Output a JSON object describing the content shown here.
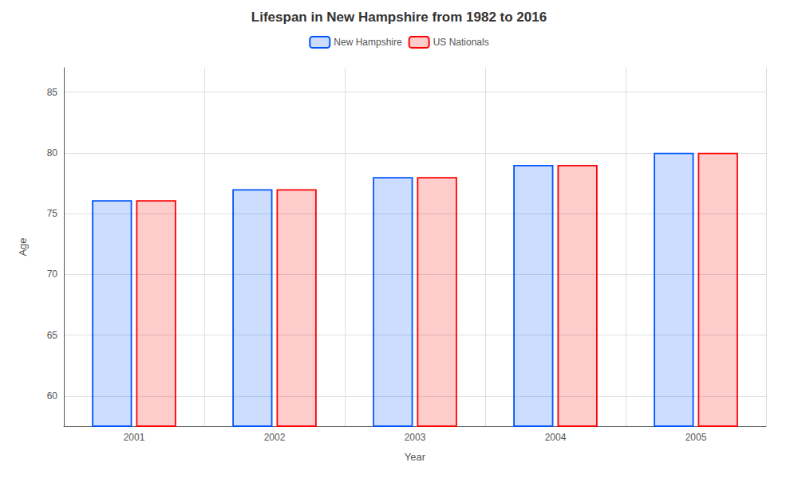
{
  "chart_data": {
    "type": "bar",
    "title": "Lifespan in New Hampshire from 1982 to 2016",
    "xlabel": "Year",
    "ylabel": "Age",
    "categories": [
      "2001",
      "2002",
      "2003",
      "2004",
      "2005"
    ],
    "series": [
      {
        "name": "New Hampshire",
        "color": "#0055ff",
        "values": [
          76.1,
          77.0,
          78.0,
          79.0,
          80.0
        ]
      },
      {
        "name": "US Nationals",
        "color": "#ff0000",
        "values": [
          76.1,
          77.0,
          78.0,
          79.0,
          80.0
        ]
      }
    ],
    "ylim": [
      57.5,
      87
    ],
    "yticks": [
      60,
      65,
      70,
      75,
      80,
      85
    ],
    "grid": true,
    "legend": "top"
  }
}
